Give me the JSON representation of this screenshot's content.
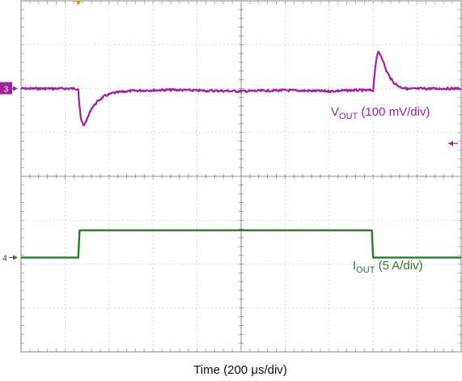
{
  "chart_data": {
    "type": "line",
    "xlabel": "Time (200 μs/div)",
    "divisions": {
      "horizontal": 10,
      "vertical": 8
    },
    "grid": true,
    "trigger_marker_color": "#e0a030",
    "series": [
      {
        "name_main": "V",
        "name_sub": "OUT",
        "name_rest": " (100 mV/div)",
        "channel": "3",
        "color": "#a020a0",
        "offset_div": 2.0,
        "arrow_div": 3.25,
        "x": [
          0,
          1.3,
          1.32,
          1.36,
          1.42,
          1.5,
          1.6,
          1.75,
          1.9,
          2.1,
          2.4,
          2.8,
          3.5,
          4.2,
          4.5,
          5.0,
          6.0,
          7.0,
          7.5,
          7.85,
          8.0,
          8.03,
          8.06,
          8.12,
          8.2,
          8.3,
          8.45,
          8.6,
          8.8,
          9.1,
          9.5,
          10.0
        ],
        "y": [
          0,
          0,
          -0.3,
          -0.7,
          -0.85,
          -0.7,
          -0.45,
          -0.28,
          -0.17,
          -0.1,
          -0.06,
          -0.04,
          -0.03,
          -0.05,
          -0.05,
          -0.06,
          -0.04,
          -0.06,
          -0.04,
          -0.04,
          -0.04,
          0.3,
          0.6,
          0.85,
          0.7,
          0.4,
          0.15,
          0.04,
          -0.01,
          0,
          0,
          0
        ]
      },
      {
        "name_main": "I",
        "name_sub": "OUT",
        "name_rest": " (5 A/div)",
        "channel": "4",
        "color": "#2a7a2a",
        "offset_div": 5.85,
        "arrow_div": 5.85,
        "x": [
          0,
          1.3,
          1.33,
          7.97,
          8.0,
          10.0
        ],
        "y": [
          0,
          0,
          0.62,
          0.62,
          0,
          0
        ]
      }
    ]
  }
}
